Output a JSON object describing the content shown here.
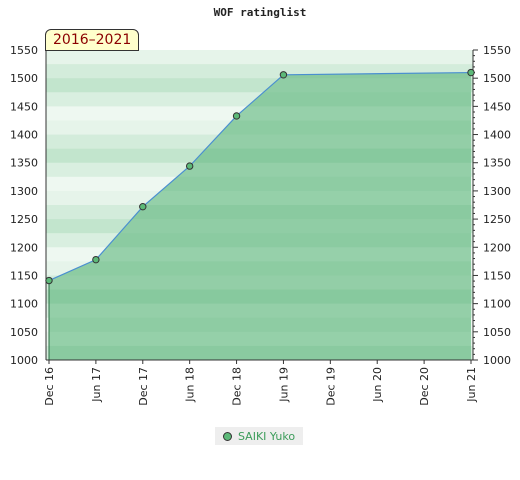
{
  "title": "WOF ratinglist",
  "badge": "2016–2021",
  "colors": {
    "fill": "#7cc495",
    "line": "#4a8fd0",
    "point": "#5cb978",
    "legend_text": "#3c9c5a"
  },
  "chart_data": {
    "type": "area",
    "title": "WOF ratinglist",
    "ylim": [
      1000,
      1550
    ],
    "yticks": [
      1000,
      1050,
      1100,
      1150,
      1200,
      1250,
      1300,
      1350,
      1400,
      1450,
      1500,
      1550
    ],
    "xticks": [
      "Dec 16",
      "Jun 17",
      "Dec 17",
      "Jun 18",
      "Dec 18",
      "Jun 19",
      "Dec 19",
      "Jun 20",
      "Dec 20",
      "Jun 21"
    ],
    "grid": true,
    "legend_position": "bottom",
    "series": [
      {
        "name": "SAIKI Yuko",
        "x": [
          "Dec 16",
          "Jun 17",
          "Dec 17",
          "Jun 18",
          "Dec 18",
          "Jun 19",
          "Jun 21"
        ],
        "values": [
          1141,
          1178,
          1272,
          1344,
          1433,
          1506,
          1510
        ]
      }
    ]
  }
}
